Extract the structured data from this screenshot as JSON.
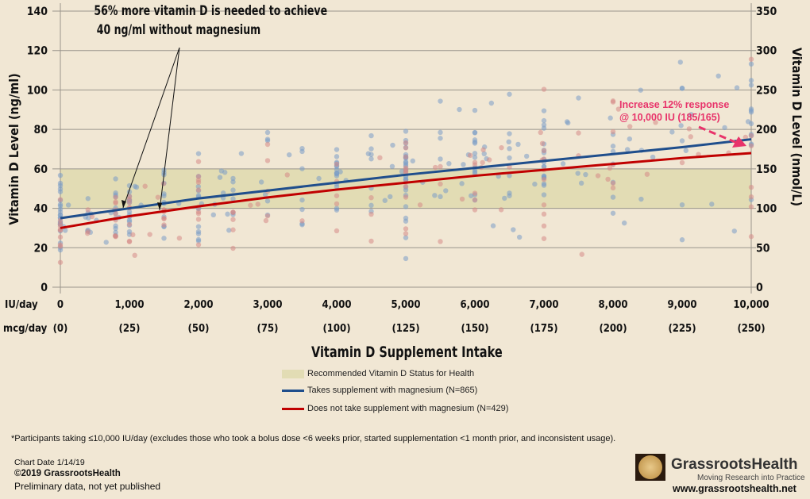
{
  "chart_data": {
    "type": "scatter",
    "annotation_top": [
      "56% more vitamin D is needed to achieve",
      "40 ng/ml without magnesium"
    ],
    "annotation_right": [
      "Increase 12% response",
      "@ 10,000 IU (185/165)"
    ],
    "xlabel": "Vitamin D Supplement Intake",
    "ylabel_left": "Vitamin D Level (ng/ml)",
    "ylabel_right": "Vitamin D Level (nmol/L)",
    "x_row1_label": "IU/day",
    "x_row2_label": "mcg/day",
    "xlim": [
      0,
      10000
    ],
    "ylim_left": [
      0,
      140
    ],
    "ylim_right": [
      0,
      350
    ],
    "x_ticks_iu": [
      "0",
      "1,000",
      "2,000",
      "3,000",
      "4,000",
      "5,000",
      "6,000",
      "7,000",
      "8,000",
      "9,000",
      "10,000"
    ],
    "x_ticks_mcg": [
      "(0)",
      "(25)",
      "(50)",
      "(75)",
      "(100)",
      "(125)",
      "(150)",
      "(175)",
      "(200)",
      "(225)",
      "(250)"
    ],
    "y_ticks_left": [
      "0",
      "20",
      "40",
      "60",
      "80",
      "100",
      "120",
      "140"
    ],
    "y_ticks_right": [
      "0",
      "50",
      "100",
      "150",
      "200",
      "250",
      "300",
      "350"
    ],
    "grid": true,
    "recommended_band": {
      "label": "Recommended Vitamin D Status for Health",
      "range": [
        40,
        60
      ],
      "color": "#e2dcb4"
    },
    "series": [
      {
        "name": "Takes supplement with magnesium (N=865)",
        "color": "#1f4e8c",
        "dot_color": "#7a9cc6",
        "x": [
          0,
          1000,
          2000,
          3000,
          4000,
          5000,
          6000,
          7000,
          8000,
          9000,
          10000
        ],
        "y": [
          35,
          40,
          45,
          49,
          53,
          57,
          60.5,
          64,
          67.5,
          71,
          75
        ]
      },
      {
        "name": "Does not take supplement with magnesium (N=429)",
        "color": "#c00000",
        "dot_color": "#d58a86",
        "x": [
          0,
          1000,
          2000,
          3000,
          4000,
          5000,
          6000,
          7000,
          8000,
          9000,
          10000
        ],
        "y": [
          30,
          36,
          41,
          45.5,
          49.5,
          53,
          56.5,
          59.5,
          62.5,
          65.5,
          68
        ]
      }
    ],
    "annotation_color": "#e8336a"
  },
  "footnote": "*Participants taking ≤10,000 IU/day  (excludes those who took a bolus dose <6 weeks prior, started supplementation <1 month prior, and inconsistent usage).",
  "chart_date": "Chart Date 1/14/19",
  "copyright": "©2019 GrassrootsHealth",
  "status": "Preliminary data, not yet published",
  "logo": {
    "name": "GrassrootsHealth",
    "tagline": "Moving Research into Practice",
    "url": "www.grassrootshealth.net"
  }
}
